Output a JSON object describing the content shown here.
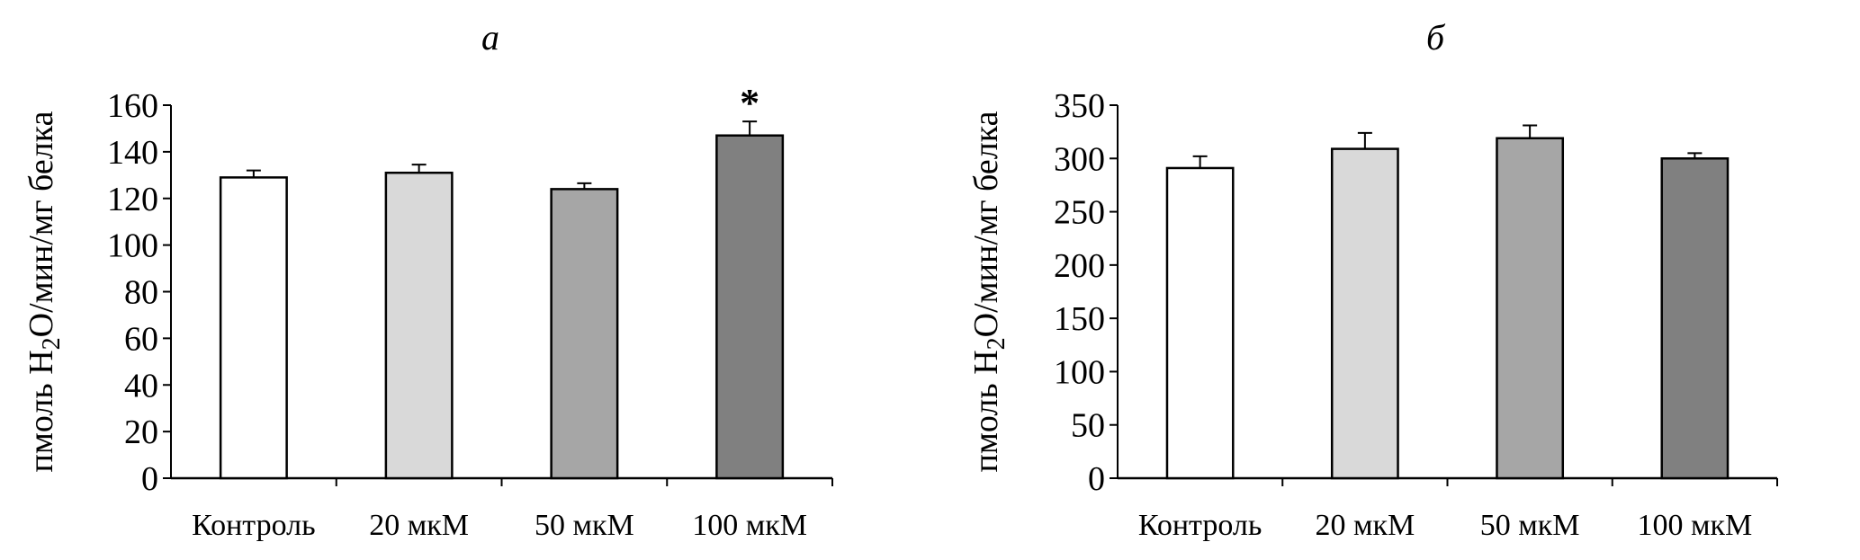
{
  "chart_data": [
    {
      "type": "bar",
      "title": "а",
      "ylabel": {
        "pre": "пмоль H",
        "sub": "2",
        "post": "O/мин/мг белка"
      },
      "categories": [
        "Контроль",
        "20 мкМ",
        "50 мкМ",
        "100 мкМ"
      ],
      "values": [
        129,
        131,
        124,
        147
      ],
      "errors": [
        3,
        3.5,
        2.5,
        6
      ],
      "annotations": [
        "",
        "",
        "",
        "*"
      ],
      "colors": [
        "#ffffff",
        "#d9d9d9",
        "#a6a6a6",
        "#808080"
      ],
      "ylim": [
        0,
        160
      ],
      "yticks": [
        "0",
        "20",
        "40",
        "60",
        "80",
        "100",
        "120",
        "140",
        "160"
      ]
    },
    {
      "type": "bar",
      "title": "б",
      "ylabel": {
        "pre": "пмоль H",
        "sub": "2",
        "post": "O/мин/мг белка"
      },
      "categories": [
        "Контроль",
        "20 мкМ",
        "50 мкМ",
        "100 мкМ"
      ],
      "values": [
        291,
        309,
        319,
        300
      ],
      "errors": [
        11,
        15,
        12,
        5
      ],
      "annotations": [
        "",
        "",
        "",
        ""
      ],
      "colors": [
        "#ffffff",
        "#d9d9d9",
        "#a6a6a6",
        "#808080"
      ],
      "ylim": [
        0,
        350
      ],
      "yticks": [
        "0",
        "50",
        "100",
        "150",
        "200",
        "250",
        "300",
        "350"
      ]
    }
  ]
}
